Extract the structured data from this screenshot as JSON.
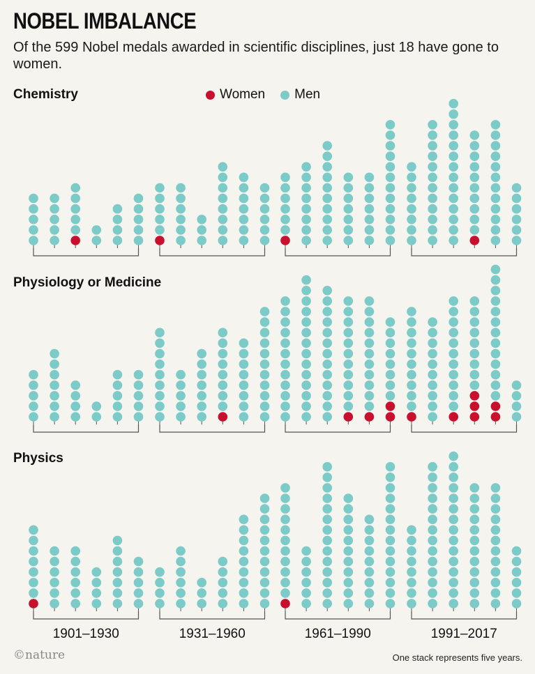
{
  "title": "NOBEL IMBALANCE",
  "subtitle": "Of the 599 Nobel medals awarded in scientific disciplines, just 18 have gone to women.",
  "legend": {
    "women": "Women",
    "men": "Men"
  },
  "colors": {
    "women": "#c8102e",
    "men": "#7ccbc8",
    "bracket": "#555555",
    "background": "#f5f4ee"
  },
  "footer": {
    "logo": "©nature",
    "note": "One stack represents five years."
  },
  "chart_data": [
    {
      "type": "stacked-dot",
      "title": "Chemistry",
      "periods": [
        "1901–1930",
        "1931–1960",
        "1961–1990",
        "1991–2017"
      ],
      "series": [
        {
          "name": "Women",
          "values": [
            0,
            0,
            1,
            0,
            0,
            0,
            1,
            0,
            0,
            0,
            0,
            0,
            1,
            0,
            0,
            0,
            0,
            0,
            0,
            0,
            0,
            1,
            0,
            0
          ]
        },
        {
          "name": "Men",
          "values": [
            5,
            5,
            5,
            2,
            4,
            5,
            5,
            6,
            3,
            8,
            7,
            6,
            6,
            8,
            10,
            7,
            7,
            12,
            8,
            12,
            14,
            10,
            12,
            6
          ]
        }
      ]
    },
    {
      "type": "stacked-dot",
      "title": "Physiology or Medicine",
      "periods": [
        "1901–1930",
        "1931–1960",
        "1961–1990",
        "1991–2017"
      ],
      "series": [
        {
          "name": "Women",
          "values": [
            0,
            0,
            0,
            0,
            0,
            0,
            0,
            0,
            0,
            1,
            0,
            0,
            0,
            0,
            0,
            1,
            1,
            2,
            1,
            0,
            1,
            3,
            2,
            0
          ]
        },
        {
          "name": "Men",
          "values": [
            5,
            7,
            4,
            2,
            5,
            5,
            9,
            5,
            7,
            8,
            8,
            11,
            12,
            14,
            13,
            11,
            11,
            8,
            10,
            10,
            11,
            9,
            13,
            4
          ]
        }
      ]
    },
    {
      "type": "stacked-dot",
      "title": "Physics",
      "periods": [
        "1901–1930",
        "1931–1960",
        "1961–1990",
        "1991–2017"
      ],
      "series": [
        {
          "name": "Women",
          "values": [
            1,
            0,
            0,
            0,
            0,
            0,
            0,
            0,
            0,
            0,
            0,
            0,
            1,
            0,
            0,
            0,
            0,
            0,
            0,
            0,
            0,
            0,
            0,
            0
          ]
        },
        {
          "name": "Men",
          "values": [
            7,
            6,
            6,
            4,
            7,
            5,
            4,
            6,
            3,
            5,
            9,
            11,
            11,
            6,
            14,
            11,
            9,
            14,
            8,
            14,
            15,
            12,
            12,
            6
          ]
        }
      ]
    }
  ]
}
